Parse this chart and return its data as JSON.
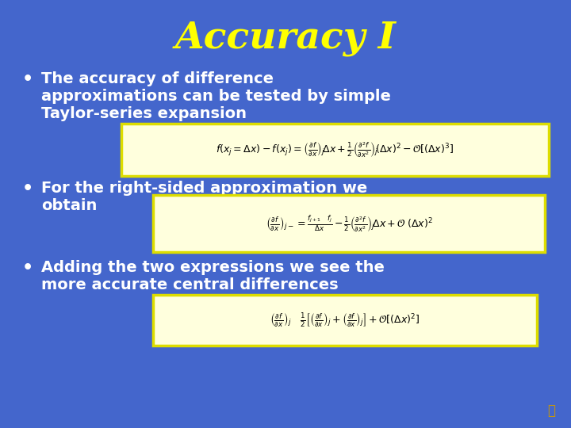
{
  "background_color": "#4466CC",
  "title": "Accuracy I",
  "title_color": "#FFFF00",
  "title_fontsize": 34,
  "title_fontstyle": "italic",
  "title_fontweight": "bold",
  "bullet_color": "#FFFFFF",
  "bullet_fontsize": 14,
  "bullet_fontweight": "bold",
  "formula_box_facecolor": "#FFFFDD",
  "formula_box_edgecolor": "#DDDD00",
  "formula_fontsize": 9,
  "bullet1_line1": "The accuracy of difference",
  "bullet1_line2": "approximations can be tested by simple",
  "bullet1_line3": "Taylor-series expansion",
  "bullet2_line1": "For the right-sided approximation we",
  "bullet2_line2": "obtain",
  "bullet3_line1": "Adding the two expressions we see the",
  "bullet3_line2": "more accurate central differences",
  "formula1": "$f(x_j = \\Delta x) - f(x_j) = \\left(\\frac{\\partial f}{\\partial x}\\right)_j \\!\\Delta x + \\frac{1}{2}\\left(\\frac{\\partial^2 f}{\\partial x^2}\\right)_j\\!(\\Delta x)^2 - \\mathcal{O}\\left[(\\Delta x)^3\\right]$",
  "formula2": "$\\left(\\frac{\\partial f}{\\partial x}\\right)_{j-} = \\frac{f_{j+1} \\quad f_j}{\\Delta x} - \\frac{1}{2}\\left(\\frac{\\partial^2 f}{\\partial x^2}\\right)_j \\!\\Delta x + \\mathcal{O}\\;(\\Delta x)^2$",
  "formula3": "$\\left(\\frac{\\partial f}{\\partial x}\\right)_j \\quad \\frac{1}{2}\\left[\\left(\\frac{\\partial f}{\\partial x}\\right)_j + \\left(\\frac{\\partial f}{\\partial x}\\right)_j\\right] + \\mathcal{O}\\left[(\\Delta x)^2\\right]$",
  "speaker_color": "#CC9900"
}
